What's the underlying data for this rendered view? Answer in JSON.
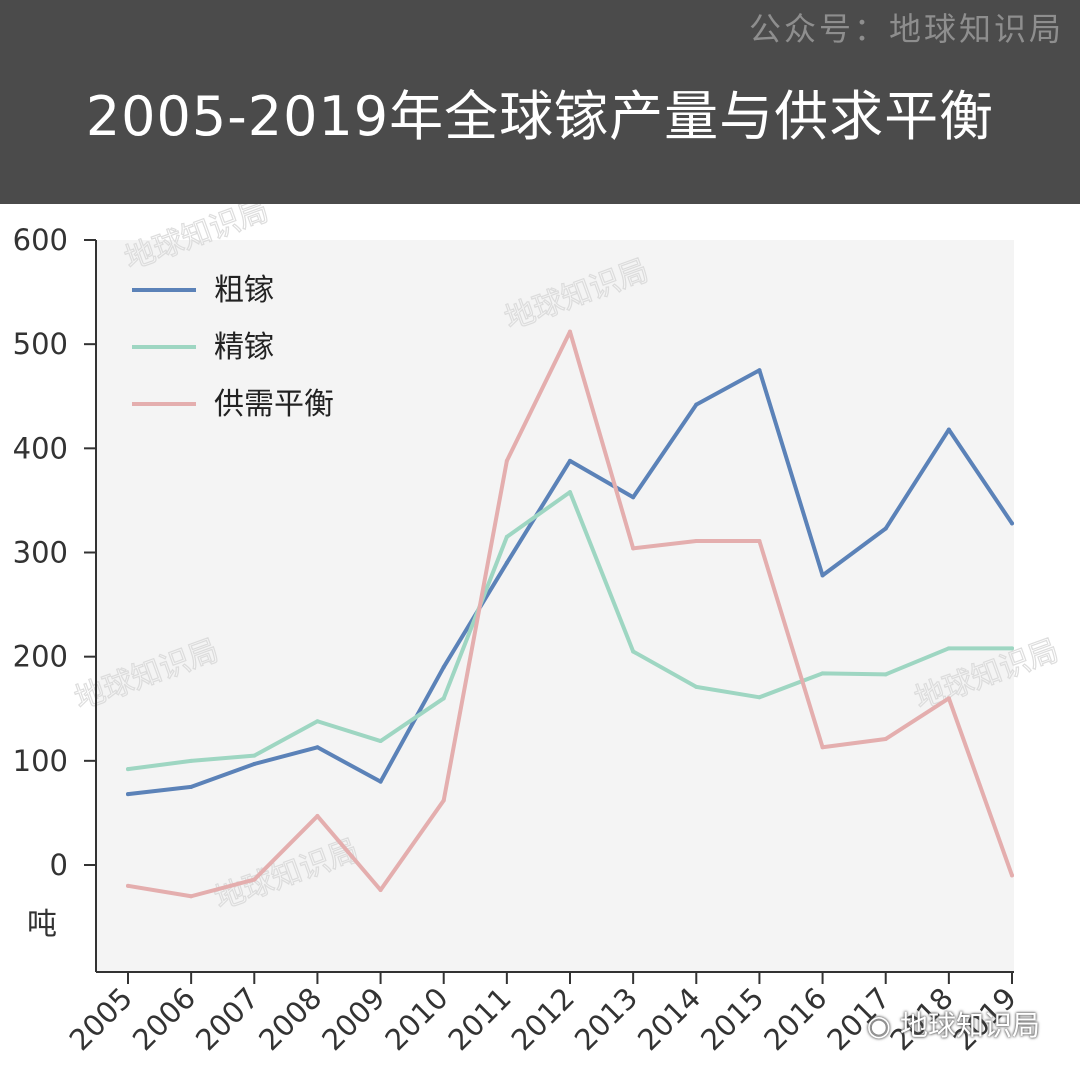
{
  "header": {
    "account": "公众号：地球知识局",
    "title": "2005-2019年全球镓产量与供求平衡"
  },
  "watermark": "地球知识局",
  "colors": {
    "header_bg": "#4b4b4b",
    "plot_bg": "#f4f4f4"
  },
  "chart_data": {
    "type": "line",
    "title": "2005-2019年全球镓产量与供求平衡",
    "ylabel": "吨",
    "xlabel": "",
    "ylim": [
      -100,
      600
    ],
    "yticks": [
      0,
      100,
      200,
      300,
      400,
      500,
      600
    ],
    "categories": [
      "2005",
      "2006",
      "2007",
      "2008",
      "2009",
      "2010",
      "2011",
      "2012",
      "2013",
      "2014",
      "2015",
      "2016",
      "2017",
      "2018",
      "2019"
    ],
    "legend_position": "top-left",
    "grid": false,
    "series": [
      {
        "name": "粗镓",
        "color": "#5b82b8",
        "values": [
          68,
          75,
          97,
          113,
          80,
          190,
          290,
          388,
          353,
          442,
          475,
          278,
          323,
          418,
          328
        ]
      },
      {
        "name": "精镓",
        "color": "#9ed6c2",
        "values": [
          92,
          100,
          105,
          138,
          119,
          160,
          315,
          358,
          205,
          171,
          161,
          184,
          183,
          208,
          208
        ]
      },
      {
        "name": "供需平衡",
        "color": "#e4aeae",
        "values": [
          -20,
          -30,
          -14,
          47,
          -24,
          62,
          388,
          512,
          304,
          311,
          311,
          113,
          121,
          160,
          -10
        ]
      }
    ]
  }
}
